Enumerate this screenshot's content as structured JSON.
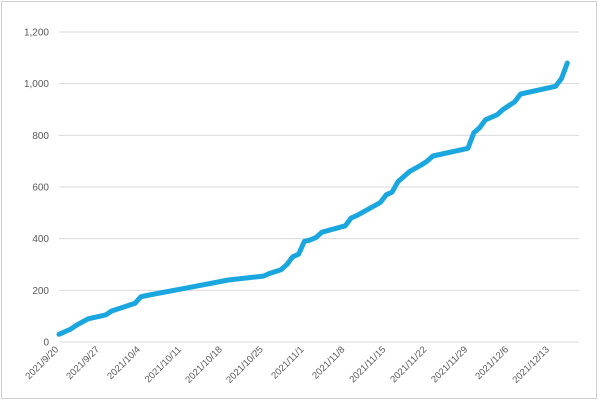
{
  "chart_data": {
    "type": "line",
    "title": "",
    "xlabel": "",
    "ylabel": "",
    "ylim": [
      0,
      1200
    ],
    "y_ticks": [
      0,
      200,
      400,
      600,
      800,
      1000,
      1200
    ],
    "y_tick_labels": [
      "0",
      "200",
      "400",
      "600",
      "800",
      "1,000",
      "1,200"
    ],
    "x_tick_labels": [
      "2021/9/20",
      "2021/9/27",
      "2021/10/4",
      "2021/10/11",
      "2021/10/18",
      "2021/10/25",
      "2021/11/1",
      "2021/11/8",
      "2021/11/15",
      "2021/11/22",
      "2021/11/29",
      "2021/12/6",
      "2021/12/13"
    ],
    "grid": true,
    "legend": "none",
    "line_color": "#1aa7df",
    "series": [
      {
        "x": [
          "2021/9/20",
          "2021/9/22",
          "2021/9/23",
          "2021/9/25",
          "2021/9/28",
          "2021/9/29",
          "2021/10/3",
          "2021/10/4",
          "2021/10/5",
          "2021/10/12",
          "2021/10/19",
          "2021/10/25",
          "2021/10/26",
          "2021/10/28",
          "2021/10/29",
          "2021/10/30",
          "2021/10/31",
          "2021/11/1",
          "2021/11/2",
          "2021/11/3",
          "2021/11/4",
          "2021/11/8",
          "2021/11/9",
          "2021/11/10",
          "2021/11/14",
          "2021/11/15",
          "2021/11/16",
          "2021/11/17",
          "2021/11/19",
          "2021/11/21",
          "2021/11/22",
          "2021/11/23",
          "2021/11/29",
          "2021/11/30",
          "2021/12/1",
          "2021/12/2",
          "2021/12/4",
          "2021/12/5",
          "2021/12/7",
          "2021/12/8",
          "2021/12/14",
          "2021/12/15",
          "2021/12/16"
        ],
        "y": [
          30,
          50,
          65,
          90,
          105,
          120,
          150,
          175,
          180,
          210,
          240,
          255,
          265,
          280,
          300,
          330,
          340,
          390,
          395,
          405,
          425,
          450,
          480,
          490,
          540,
          570,
          580,
          620,
          660,
          685,
          700,
          720,
          750,
          810,
          830,
          860,
          880,
          900,
          930,
          960,
          990,
          1020,
          1080
        ]
      }
    ]
  }
}
